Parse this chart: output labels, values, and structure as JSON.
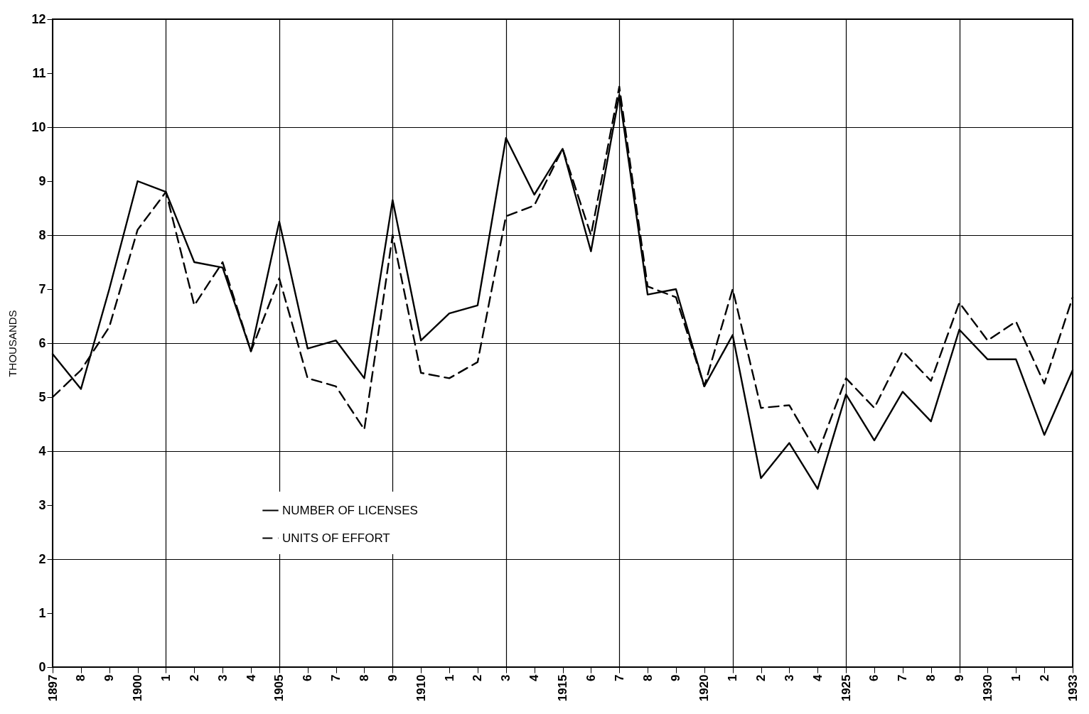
{
  "chart_data": {
    "type": "line",
    "ylabel": "THOUSANDS",
    "categories": [
      "1897",
      "8",
      "9",
      "1900",
      "1",
      "2",
      "3",
      "4",
      "1905",
      "6",
      "7",
      "8",
      "9",
      "1910",
      "1",
      "2",
      "3",
      "4",
      "1915",
      "6",
      "7",
      "8",
      "9",
      "1920",
      "1",
      "2",
      "3",
      "4",
      "1925",
      "6",
      "7",
      "8",
      "9",
      "1930",
      "1",
      "2",
      "1933"
    ],
    "series": [
      {
        "name": "NUMBER OF LICENSES",
        "color": "#000000",
        "line_style": "solid",
        "values": [
          5.8,
          5.15,
          7.0,
          9.0,
          8.8,
          7.5,
          7.4,
          5.85,
          8.25,
          5.9,
          6.05,
          5.35,
          8.65,
          6.05,
          6.55,
          6.7,
          9.8,
          8.75,
          9.6,
          7.7,
          10.6,
          6.9,
          7.0,
          5.2,
          6.15,
          3.5,
          4.15,
          3.3,
          5.05,
          4.2,
          5.1,
          4.55,
          6.25,
          5.7,
          5.7,
          4.3,
          5.5
        ]
      },
      {
        "name": "UNITS OF EFFORT",
        "color": "#000000",
        "line_style": "dashed",
        "values": [
          5.0,
          5.5,
          6.3,
          8.1,
          8.8,
          6.7,
          7.5,
          5.85,
          7.2,
          5.35,
          5.2,
          4.4,
          8.0,
          5.45,
          5.35,
          5.65,
          8.35,
          8.55,
          9.6,
          8.0,
          10.75,
          7.05,
          6.85,
          5.2,
          7.0,
          4.8,
          4.85,
          3.95,
          5.35,
          4.8,
          5.85,
          5.3,
          6.75,
          6.05,
          6.4,
          5.25,
          6.85
        ]
      }
    ],
    "ylim": [
      0,
      12
    ],
    "yticks": [
      0,
      1,
      2,
      3,
      4,
      5,
      6,
      7,
      8,
      9,
      10,
      11,
      12
    ],
    "grid": true,
    "legend": "bottom left",
    "marker": "none"
  }
}
